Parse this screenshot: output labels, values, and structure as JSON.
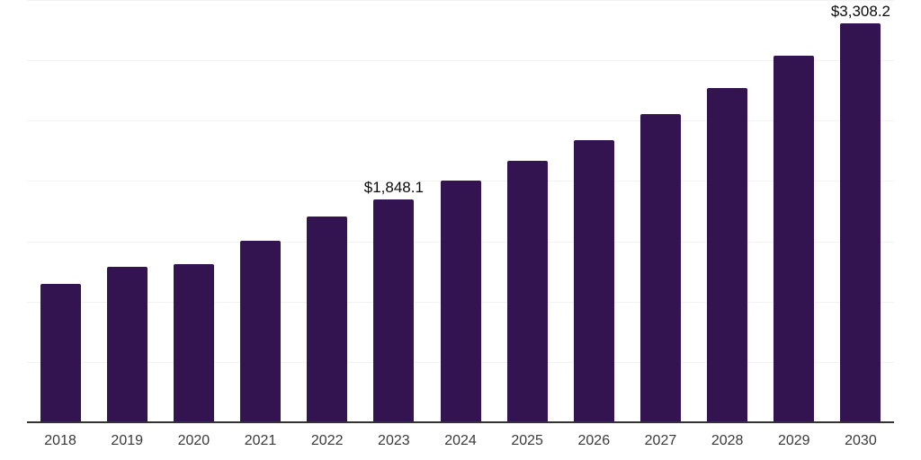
{
  "chart_data": {
    "type": "bar",
    "title": "",
    "xlabel": "",
    "ylabel": "",
    "categories": [
      "2018",
      "2019",
      "2020",
      "2021",
      "2022",
      "2023",
      "2024",
      "2025",
      "2026",
      "2027",
      "2028",
      "2029",
      "2030"
    ],
    "values": [
      1150,
      1288,
      1310,
      1505,
      1708,
      1848.1,
      2000,
      2170,
      2340,
      2557,
      2773,
      3035,
      3308.2
    ],
    "data_labels": [
      {
        "category": "2023",
        "text": "$1,848.1"
      },
      {
        "category": "2030",
        "text": "$3,308.2"
      }
    ],
    "ylim": [
      0,
      3500
    ],
    "gridline_step": 500,
    "grid": true,
    "y_tick_labels_visible": false,
    "legend_position": "none"
  },
  "colors": {
    "background": "#ffffff",
    "bar": "#331450",
    "gridline": "#f2f2f2",
    "axis_line": "#333333",
    "tick_label": "#3a3a3a",
    "data_label": "#0a0a0a"
  }
}
